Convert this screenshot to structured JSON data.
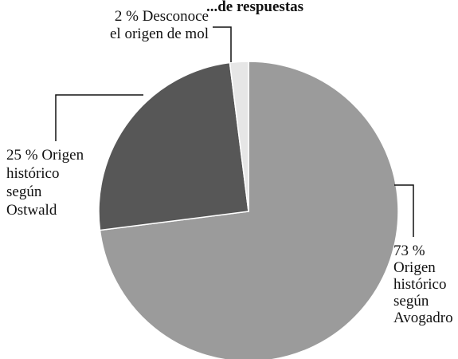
{
  "chart_data": {
    "type": "pie",
    "title": "...de respuestas",
    "slices": [
      {
        "category": "Origen histórico según Avogadro",
        "value": 73,
        "color": "#9b9b9b",
        "label_lines": [
          "73 %",
          "Origen",
          "histórico",
          "según",
          "Avogadro"
        ]
      },
      {
        "category": "Origen histórico según Ostwald",
        "value": 25,
        "color": "#575757",
        "label_lines": [
          "25 % Origen",
          "histórico",
          "según",
          "Ostwald"
        ]
      },
      {
        "category": "Desconoce el origen de mol",
        "value": 2,
        "color": "#e6e6e6",
        "label_lines": [
          "2 % Desconoce",
          "el origen de mol"
        ]
      }
    ],
    "start_angle_deg": 0,
    "direction": "clockwise",
    "legend": "none"
  }
}
